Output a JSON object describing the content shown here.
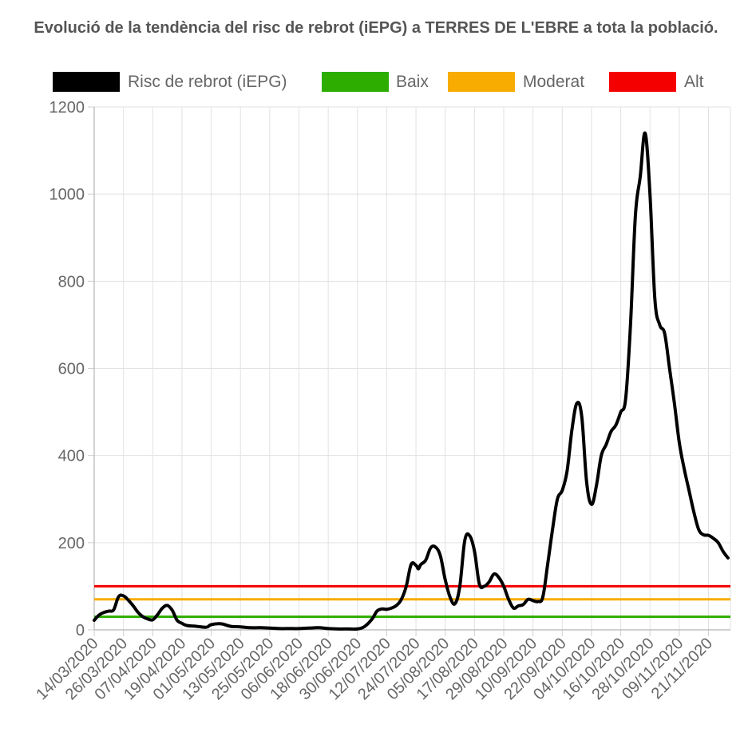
{
  "chart_data": {
    "type": "line",
    "title": "Evolució de la tendència del risc de rebrot (iEPG) a TERRES DE L'EBRE a tota la població.",
    "xlabel": "",
    "ylabel": "",
    "ylim": [
      0,
      1200
    ],
    "yticks": [
      0,
      200,
      400,
      600,
      800,
      1000,
      1200
    ],
    "grid": true,
    "legend_position": "top",
    "x_start": "14/03/2020",
    "x_end": "30/11/2020",
    "x_tick_labels": [
      "14/03/2020",
      "26/03/2020",
      "07/04/2020",
      "19/04/2020",
      "01/05/2020",
      "13/05/2020",
      "25/05/2020",
      "06/06/2020",
      "18/06/2020",
      "30/06/2020",
      "12/07/2020",
      "24/07/2020",
      "05/08/2020",
      "17/08/2020",
      "29/08/2020",
      "10/09/2020",
      "22/09/2020",
      "04/10/2020",
      "16/10/2020",
      "28/10/2020",
      "09/11/2020",
      "21/11/2020"
    ],
    "series": [
      {
        "name": "Risc de rebrot (iEPG)",
        "color": "#000000",
        "points": [
          [
            "14/03/2020",
            22
          ],
          [
            "16/03/2020",
            34
          ],
          [
            "18/03/2020",
            40
          ],
          [
            "20/03/2020",
            43
          ],
          [
            "22/03/2020",
            46
          ],
          [
            "24/03/2020",
            76
          ],
          [
            "26/03/2020",
            78
          ],
          [
            "28/03/2020",
            68
          ],
          [
            "30/03/2020",
            55
          ],
          [
            "01/04/2020",
            40
          ],
          [
            "03/04/2020",
            30
          ],
          [
            "05/04/2020",
            25
          ],
          [
            "07/04/2020",
            23
          ],
          [
            "09/04/2020",
            35
          ],
          [
            "11/04/2020",
            50
          ],
          [
            "13/04/2020",
            56
          ],
          [
            "15/04/2020",
            45
          ],
          [
            "17/04/2020",
            22
          ],
          [
            "19/04/2020",
            15
          ],
          [
            "21/04/2020",
            10
          ],
          [
            "25/04/2020",
            8
          ],
          [
            "29/04/2020",
            6
          ],
          [
            "01/05/2020",
            12
          ],
          [
            "05/05/2020",
            14
          ],
          [
            "09/05/2020",
            8
          ],
          [
            "13/05/2020",
            7
          ],
          [
            "17/05/2020",
            5
          ],
          [
            "21/05/2020",
            5
          ],
          [
            "25/05/2020",
            4
          ],
          [
            "29/05/2020",
            3
          ],
          [
            "02/06/2020",
            3
          ],
          [
            "06/06/2020",
            3
          ],
          [
            "10/06/2020",
            4
          ],
          [
            "14/06/2020",
            5
          ],
          [
            "18/06/2020",
            3
          ],
          [
            "22/06/2020",
            2
          ],
          [
            "26/06/2020",
            2
          ],
          [
            "30/06/2020",
            2
          ],
          [
            "03/07/2020",
            8
          ],
          [
            "06/07/2020",
            25
          ],
          [
            "08/07/2020",
            43
          ],
          [
            "10/07/2020",
            48
          ],
          [
            "12/07/2020",
            47
          ],
          [
            "14/07/2020",
            50
          ],
          [
            "16/07/2020",
            56
          ],
          [
            "18/07/2020",
            70
          ],
          [
            "20/07/2020",
            100
          ],
          [
            "22/07/2020",
            150
          ],
          [
            "24/07/2020",
            148
          ],
          [
            "25/07/2020",
            140
          ],
          [
            "26/07/2020",
            150
          ],
          [
            "28/07/2020",
            160
          ],
          [
            "30/07/2020",
            188
          ],
          [
            "01/08/2020",
            190
          ],
          [
            "03/08/2020",
            170
          ],
          [
            "05/08/2020",
            115
          ],
          [
            "07/08/2020",
            75
          ],
          [
            "09/08/2020",
            60
          ],
          [
            "11/08/2020",
            100
          ],
          [
            "13/08/2020",
            205
          ],
          [
            "15/08/2020",
            216
          ],
          [
            "17/08/2020",
            180
          ],
          [
            "19/08/2020",
            105
          ],
          [
            "21/08/2020",
            100
          ],
          [
            "23/08/2020",
            110
          ],
          [
            "25/08/2020",
            128
          ],
          [
            "27/08/2020",
            120
          ],
          [
            "29/08/2020",
            100
          ],
          [
            "31/08/2020",
            70
          ],
          [
            "02/09/2020",
            50
          ],
          [
            "04/09/2020",
            55
          ],
          [
            "06/09/2020",
            58
          ],
          [
            "08/09/2020",
            70
          ],
          [
            "10/09/2020",
            67
          ],
          [
            "12/09/2020",
            65
          ],
          [
            "14/09/2020",
            75
          ],
          [
            "16/09/2020",
            150
          ],
          [
            "18/09/2020",
            230
          ],
          [
            "20/09/2020",
            300
          ],
          [
            "22/09/2020",
            320
          ],
          [
            "24/09/2020",
            365
          ],
          [
            "26/09/2020",
            460
          ],
          [
            "28/09/2020",
            520
          ],
          [
            "30/09/2020",
            490
          ],
          [
            "02/10/2020",
            340
          ],
          [
            "04/10/2020",
            288
          ],
          [
            "06/10/2020",
            330
          ],
          [
            "08/10/2020",
            400
          ],
          [
            "10/10/2020",
            425
          ],
          [
            "12/10/2020",
            455
          ],
          [
            "14/10/2020",
            470
          ],
          [
            "16/10/2020",
            500
          ],
          [
            "18/10/2020",
            530
          ],
          [
            "20/10/2020",
            700
          ],
          [
            "22/10/2020",
            950
          ],
          [
            "24/10/2020",
            1040
          ],
          [
            "26/10/2020",
            1140
          ],
          [
            "28/10/2020",
            1000
          ],
          [
            "30/10/2020",
            760
          ],
          [
            "01/11/2020",
            700
          ],
          [
            "03/11/2020",
            680
          ],
          [
            "05/11/2020",
            600
          ],
          [
            "07/11/2020",
            520
          ],
          [
            "09/11/2020",
            430
          ],
          [
            "11/11/2020",
            370
          ],
          [
            "13/11/2020",
            320
          ],
          [
            "15/11/2020",
            270
          ],
          [
            "17/11/2020",
            230
          ],
          [
            "19/11/2020",
            218
          ],
          [
            "21/11/2020",
            217
          ],
          [
            "23/11/2020",
            210
          ],
          [
            "25/11/2020",
            200
          ],
          [
            "27/11/2020",
            180
          ],
          [
            "29/11/2020",
            165
          ]
        ]
      },
      {
        "name": "Baix",
        "color": "#2cad00",
        "constant": 30
      },
      {
        "name": "Moderat",
        "color": "#f8ab00",
        "constant": 70
      },
      {
        "name": "Alt",
        "color": "#f50000",
        "constant": 100
      }
    ]
  }
}
